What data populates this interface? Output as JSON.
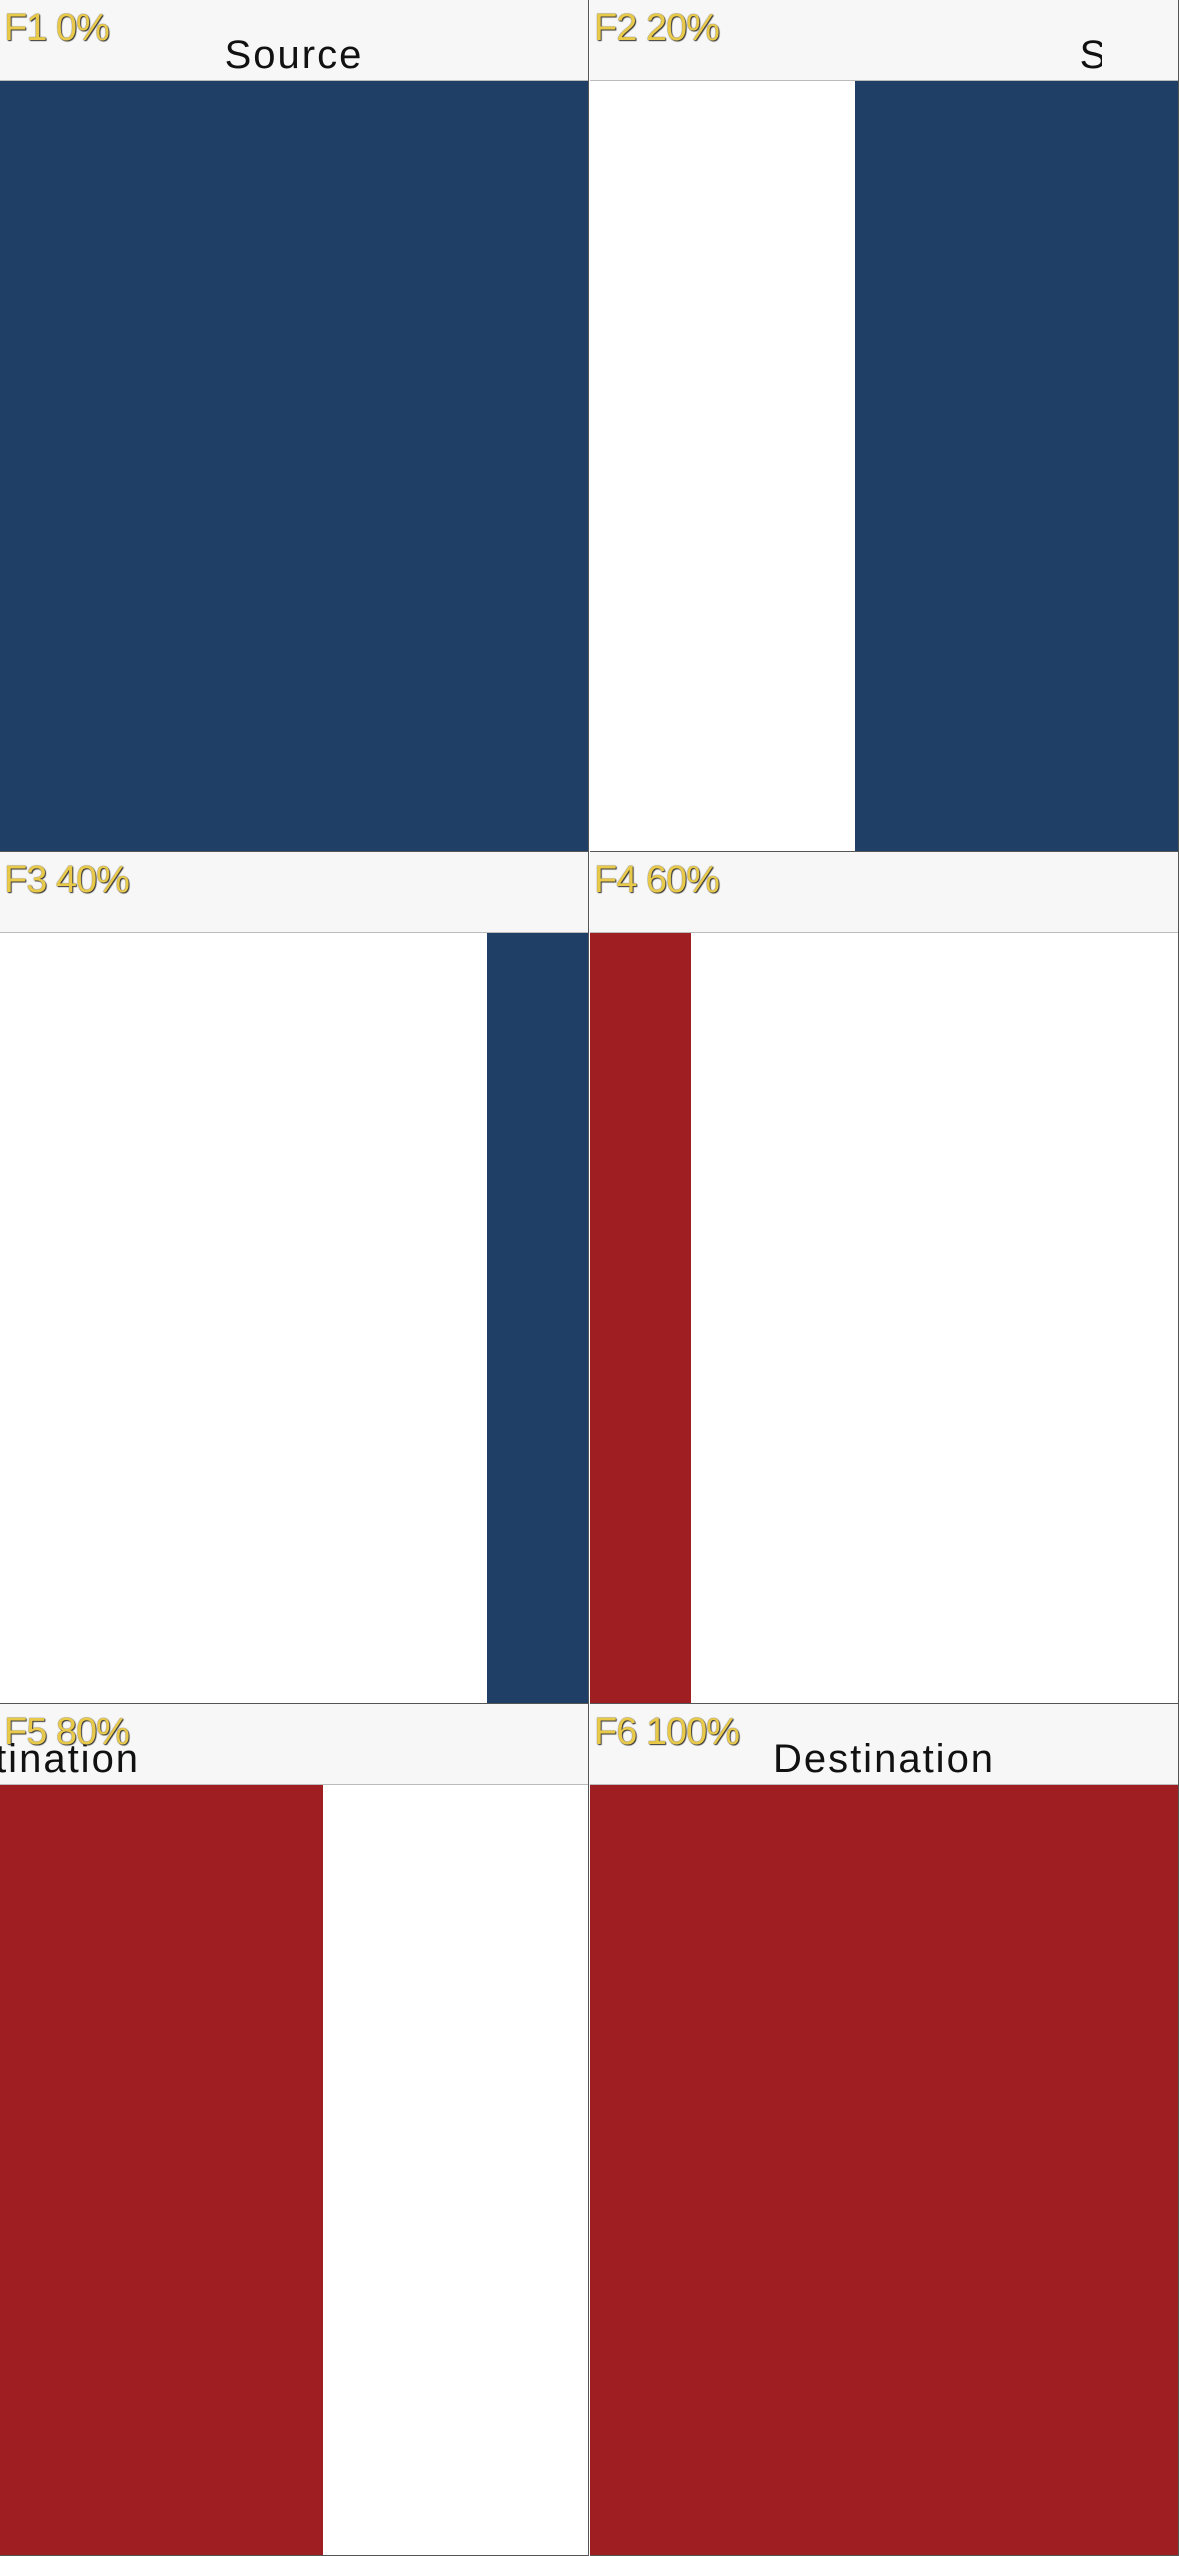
{
  "frames": [
    {
      "label": "F1 0%",
      "title": "Source"
    },
    {
      "label": "F2 20%",
      "title": "Source"
    },
    {
      "label": "F3 40%"
    },
    {
      "label": "F4 60%"
    },
    {
      "label": "F5 80%",
      "title": "Destination"
    },
    {
      "label": "F6 100%",
      "title": "Destination"
    }
  ]
}
